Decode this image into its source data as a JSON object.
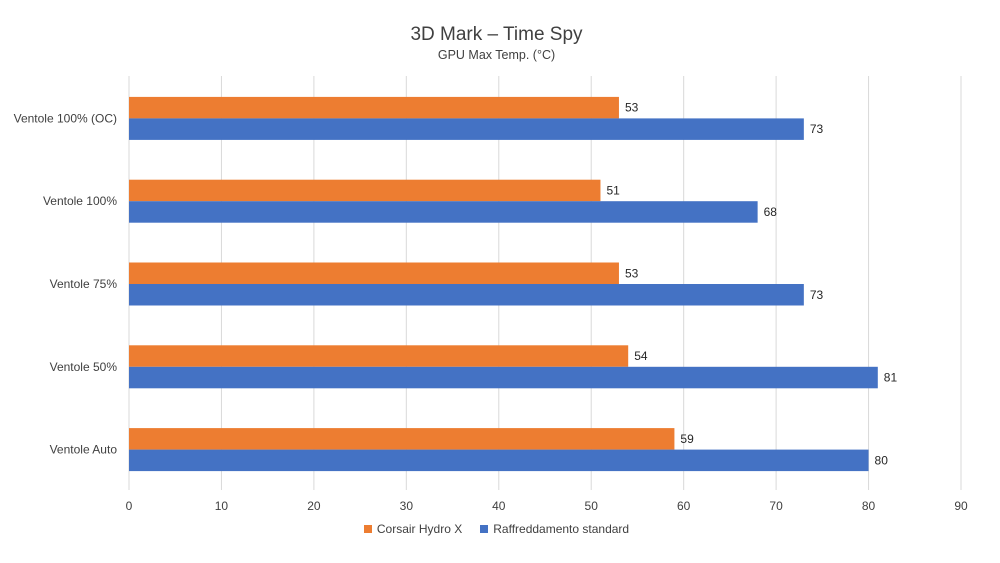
{
  "chart_data": {
    "type": "bar",
    "orientation": "horizontal",
    "title": "3D Mark – Time Spy",
    "subtitle": "GPU Max Temp. (°C)",
    "categories": [
      "Ventole 100% (OC)",
      "Ventole 100%",
      "Ventole 75%",
      "Ventole 50%",
      "Ventole Auto"
    ],
    "series": [
      {
        "name": "Corsair Hydro X",
        "color": "#ED7D31",
        "values": [
          53,
          51,
          53,
          54,
          59
        ]
      },
      {
        "name": "Raffreddamento standard",
        "color": "#4472C4",
        "values": [
          73,
          68,
          73,
          81,
          80
        ]
      }
    ],
    "xlim": [
      0,
      90
    ],
    "xticks": [
      "0",
      "10",
      "20",
      "30",
      "40",
      "50",
      "60",
      "70",
      "80",
      "90"
    ],
    "grid": "vertical",
    "legend_position": "bottom"
  }
}
